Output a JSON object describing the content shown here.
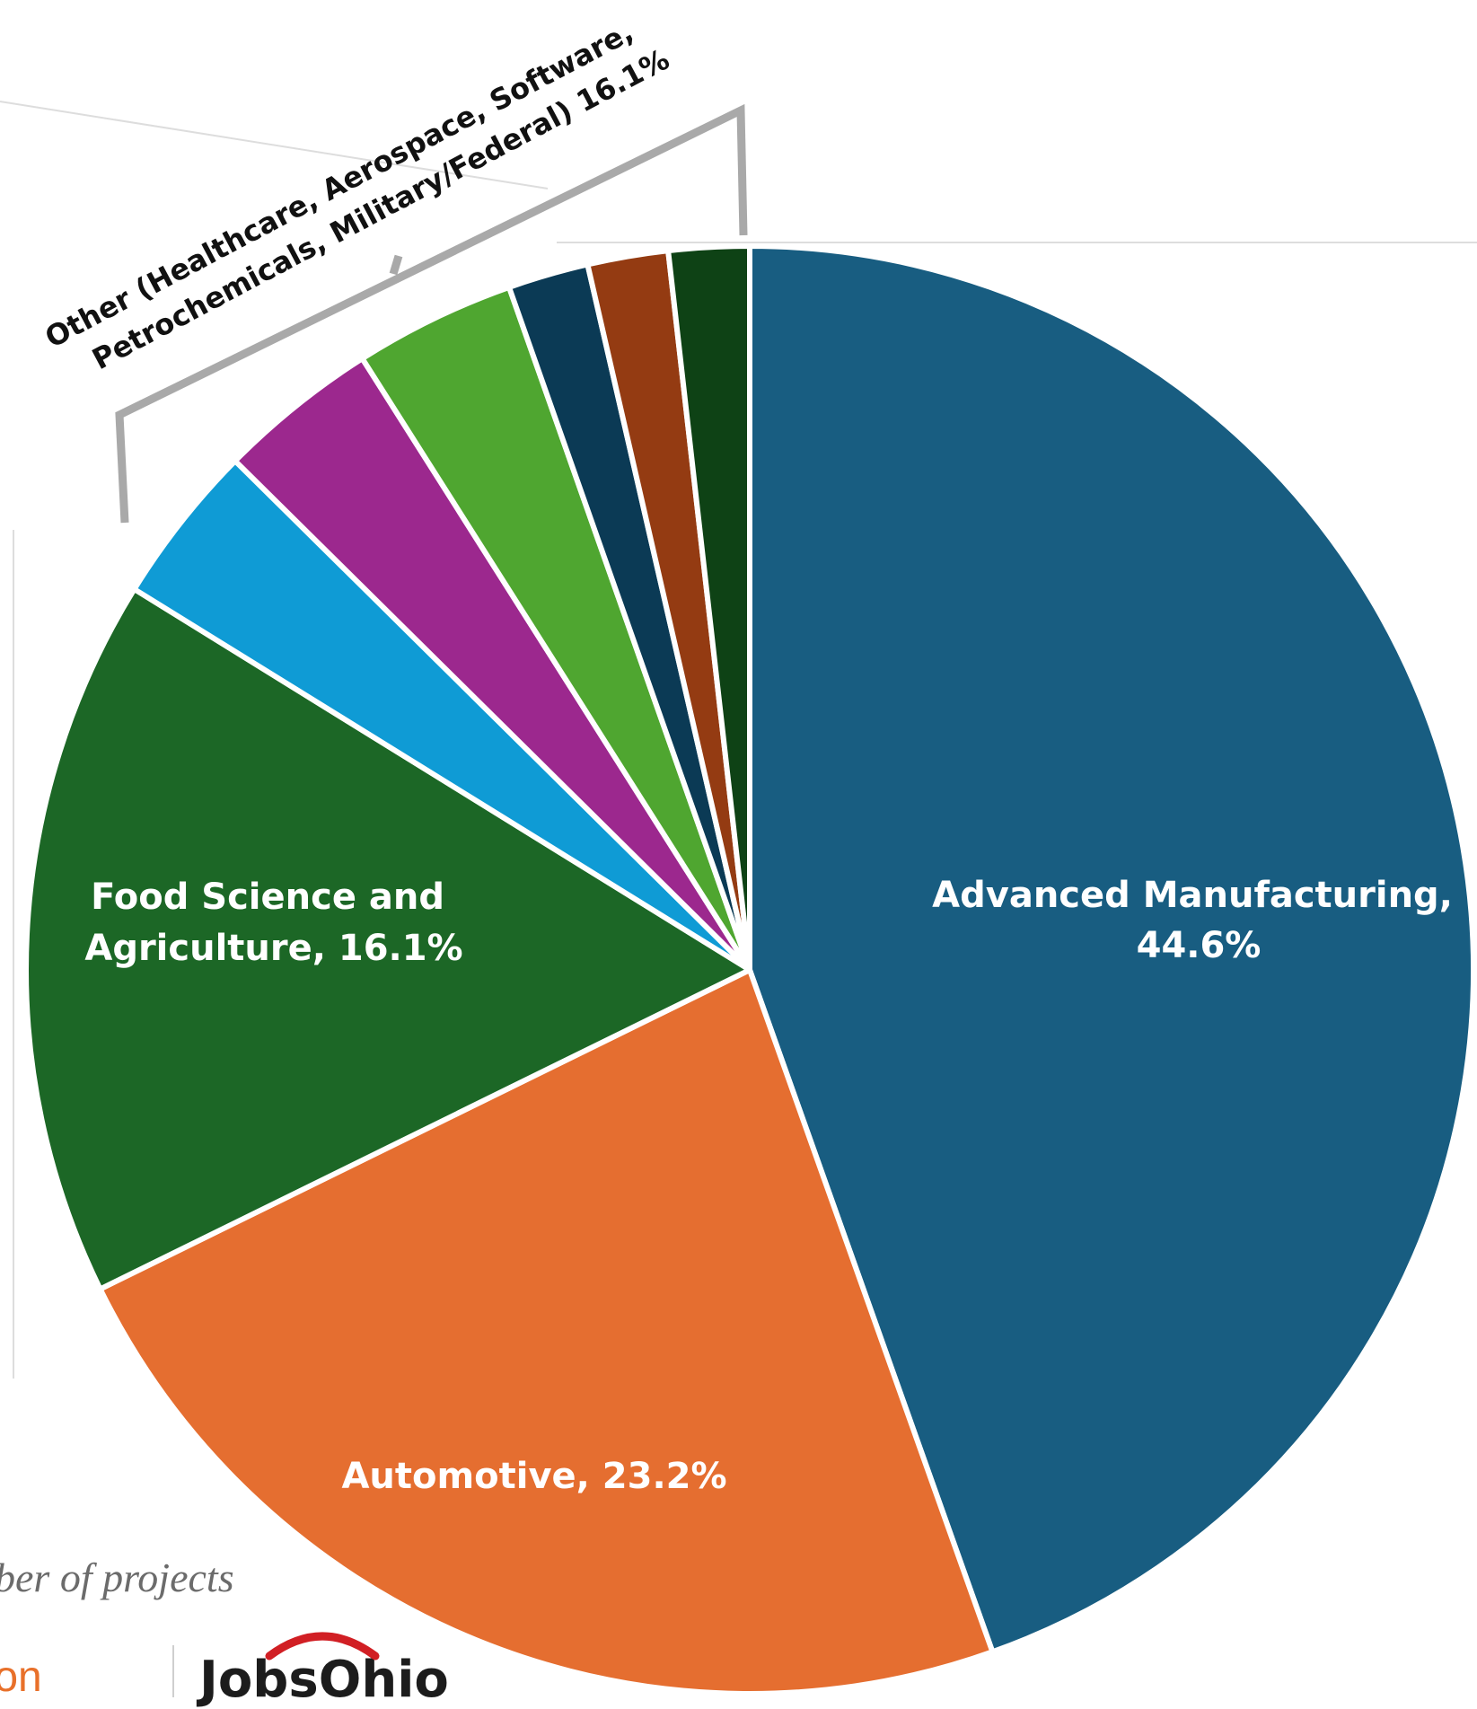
{
  "chart_data": {
    "type": "pie",
    "slices": [
      {
        "label": "Advanced Manufacturing,",
        "value_label": "44.6%",
        "value": 44.6,
        "color": "#185d81"
      },
      {
        "label": "Automotive, 23.2%",
        "value": 23.2,
        "color": "#e56e30"
      },
      {
        "label": "Food Science and",
        "label2": "Agriculture, 16.1%",
        "value": 16.1,
        "color": "#1c6726"
      },
      {
        "label": "",
        "value": 3.6,
        "color": "#0f9bd5"
      },
      {
        "label": "",
        "value": 3.6,
        "color": "#9c288e"
      },
      {
        "label": "",
        "value": 3.6,
        "color": "#4fa630"
      },
      {
        "label": "",
        "value": 1.8,
        "color": "#0b3a55"
      },
      {
        "label": "",
        "value": 1.8,
        "color": "#943b12"
      },
      {
        "label": "",
        "value": 1.8,
        "color": "#0e4215"
      }
    ],
    "other_group": {
      "lines": [
        "Other (Healthcare, Aerospace, Software,",
        "Petrochemicals, Military/Federal) 16.1%"
      ],
      "value": 16.1
    }
  },
  "caption": "ber of projects",
  "footer_fragment": "ton",
  "logo_text": "JobsOhio",
  "logo_accent_color": "#d11f24"
}
